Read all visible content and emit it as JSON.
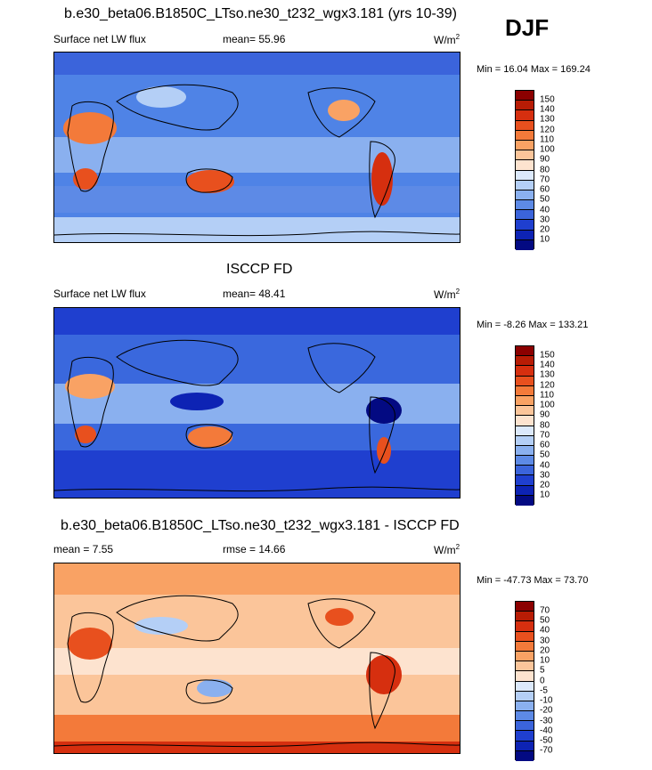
{
  "header": {
    "season": "DJF"
  },
  "panels": [
    {
      "title": "b.e30_beta06.B1850C_LTso.ne30_t232_wgx3.181 (yrs 10-39)",
      "variable": "Surface net LW flux",
      "stat": "mean=  55.96",
      "units": "W/m",
      "units_sup": "2",
      "minmax": "Min =  16.04 Max = 169.24",
      "colorbar": {
        "labels": [
          "150",
          "140",
          "130",
          "120",
          "110",
          "100",
          "90",
          "80",
          "70",
          "60",
          "50",
          "40",
          "30",
          "20",
          "10"
        ],
        "colors": [
          "#8b0000",
          "#b71c05",
          "#d62f0f",
          "#e8501e",
          "#f37a3a",
          "#f9a264",
          "#fbc59a",
          "#fde3cf",
          "#dce9fb",
          "#b4cff6",
          "#8ab0ef",
          "#5d8ae6",
          "#3b64db",
          "#1f3fcf",
          "#0d23b4",
          "#030a82"
        ]
      },
      "map": {
        "ocean": "#4f83e6",
        "land": "#d95a3a"
      }
    },
    {
      "title": "ISCCP FD",
      "variable": "Surface net LW flux",
      "stat": "mean=  48.41",
      "units": "W/m",
      "units_sup": "2",
      "minmax": "Min =  -8.26 Max = 133.21",
      "colorbar": {
        "labels": [
          "150",
          "140",
          "130",
          "120",
          "110",
          "100",
          "90",
          "80",
          "70",
          "60",
          "50",
          "40",
          "30",
          "20",
          "10"
        ],
        "colors": [
          "#8b0000",
          "#b71c05",
          "#d62f0f",
          "#e8501e",
          "#f37a3a",
          "#f9a264",
          "#fbc59a",
          "#fde3cf",
          "#dce9fb",
          "#b4cff6",
          "#8ab0ef",
          "#5d8ae6",
          "#3b64db",
          "#1f3fcf",
          "#0d23b4",
          "#030a82"
        ]
      },
      "map": {
        "ocean": "#3a68dd",
        "land": "#e77a4d"
      }
    },
    {
      "title": "b.e30_beta06.B1850C_LTso.ne30_t232_wgx3.181 - ISCCP FD",
      "variable": "mean =  7.55",
      "stat": "rmse =  14.66",
      "units": "W/m",
      "units_sup": "2",
      "minmax": "Min = -47.73 Max =  73.70",
      "colorbar": {
        "labels": [
          "70",
          "50",
          "40",
          "30",
          "20",
          "10",
          "5",
          "0",
          "-5",
          "-10",
          "-20",
          "-30",
          "-40",
          "-50",
          "-70"
        ],
        "colors": [
          "#8b0000",
          "#b71c05",
          "#d62f0f",
          "#e8501e",
          "#f37a3a",
          "#f9a264",
          "#fbc59a",
          "#fde3cf",
          "#dce9fb",
          "#b4cff6",
          "#8ab0ef",
          "#5d8ae6",
          "#3b64db",
          "#1f3fcf",
          "#0d23b4",
          "#030a82"
        ]
      },
      "map": {
        "ocean": "#f5b79b",
        "land": "#e0663f"
      }
    }
  ]
}
